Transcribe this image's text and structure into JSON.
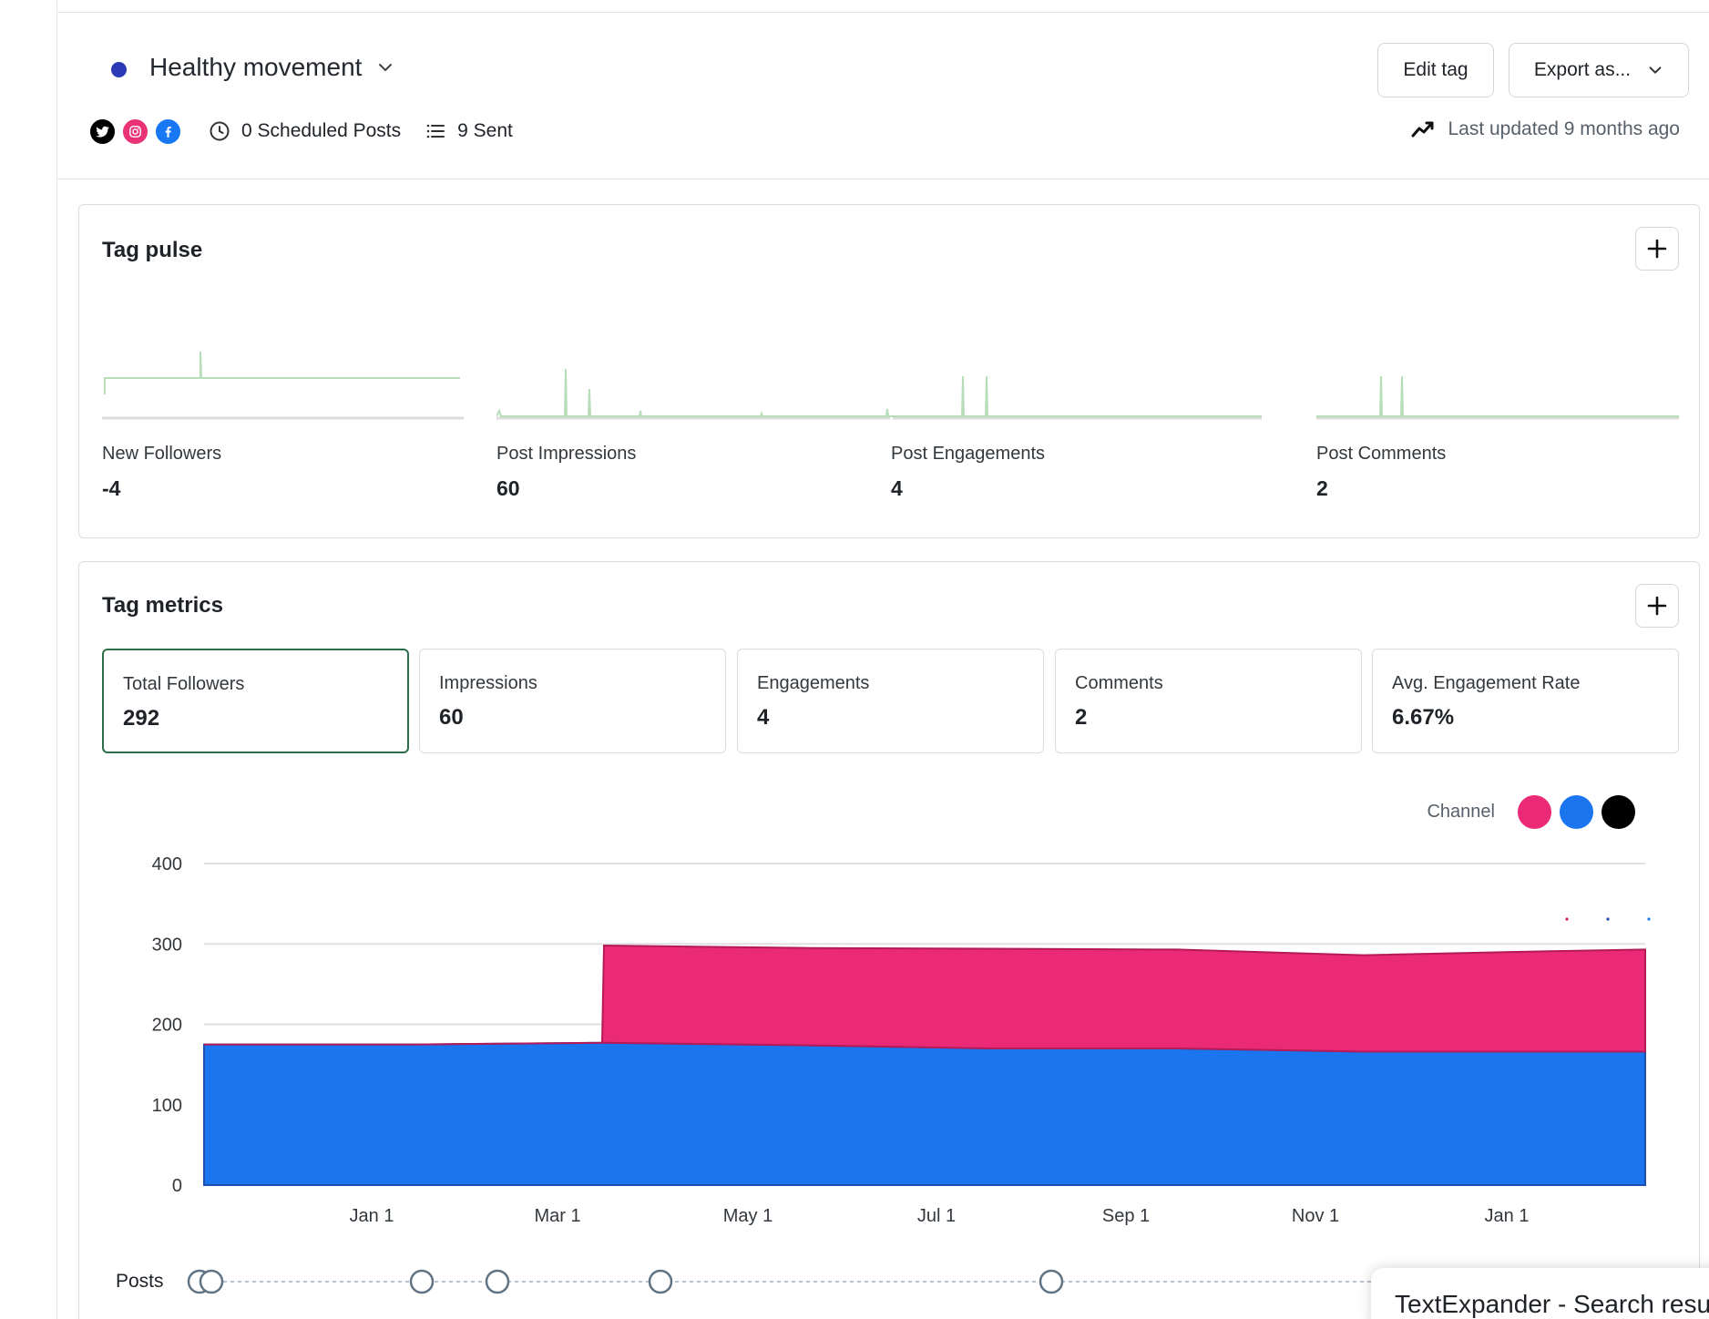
{
  "header": {
    "tag_name": "Healthy movement",
    "tag_color": "#2b3bb8",
    "edit_label": "Edit tag",
    "export_label": "Export as...",
    "scheduled_label": "0 Scheduled Posts",
    "sent_label": "9 Sent",
    "last_updated": "Last updated 9 months ago",
    "channels": [
      {
        "icon": "twitter-icon",
        "color": "#000000"
      },
      {
        "icon": "instagram-icon",
        "color": "#ea3377"
      },
      {
        "icon": "facebook-icon",
        "color": "#1877f2"
      }
    ]
  },
  "pulse": {
    "title": "Tag pulse",
    "items": [
      {
        "label": "New Followers",
        "value": "-4"
      },
      {
        "label": "Post Impressions",
        "value": "60"
      },
      {
        "label": "Post Engagements",
        "value": "4"
      },
      {
        "label": "Post Comments",
        "value": "2"
      }
    ]
  },
  "metrics": {
    "title": "Tag metrics",
    "selected": 0,
    "boxes": [
      {
        "label": "Total Followers",
        "value": "292"
      },
      {
        "label": "Impressions",
        "value": "60"
      },
      {
        "label": "Engagements",
        "value": "4"
      },
      {
        "label": "Comments",
        "value": "2"
      },
      {
        "label": "Avg. Engagement Rate",
        "value": "6.67%"
      }
    ],
    "legend_label": "Channel",
    "legend_colors": [
      "#ea2977",
      "#1a75ef",
      "#000000"
    ]
  },
  "chart_data": {
    "type": "area",
    "stacked": true,
    "x": [
      "Nov 1",
      "Jan 1",
      "Mar 1",
      "Mar 10",
      "May 1",
      "Jul 1",
      "Sep 1",
      "Nov 1",
      "Jan 1",
      "Feb 20"
    ],
    "x_tick_labels": [
      "Jan 1",
      "Mar 1",
      "May 1",
      "Jul 1",
      "Sep 1",
      "Nov 1",
      "Jan 1"
    ],
    "y_ticks": [
      0,
      100,
      200,
      300,
      400
    ],
    "ylim": [
      0,
      400
    ],
    "grid": true,
    "series": [
      {
        "color": "#1a75ef",
        "values": [
          175,
          175,
          177,
          177,
          174,
          170,
          170,
          166,
          166,
          166
        ]
      },
      {
        "color": "#ea2977",
        "values": [
          0,
          0,
          0,
          121,
          121,
          124,
          123,
          120,
          125,
          127
        ]
      },
      {
        "color": "#000000",
        "values": [
          0,
          0,
          0,
          0,
          0,
          0,
          0,
          0,
          0,
          0
        ]
      }
    ]
  },
  "posts": {
    "label": "Posts",
    "count_markers": 8
  },
  "toast": {
    "text": "TextExpander - Search results"
  }
}
